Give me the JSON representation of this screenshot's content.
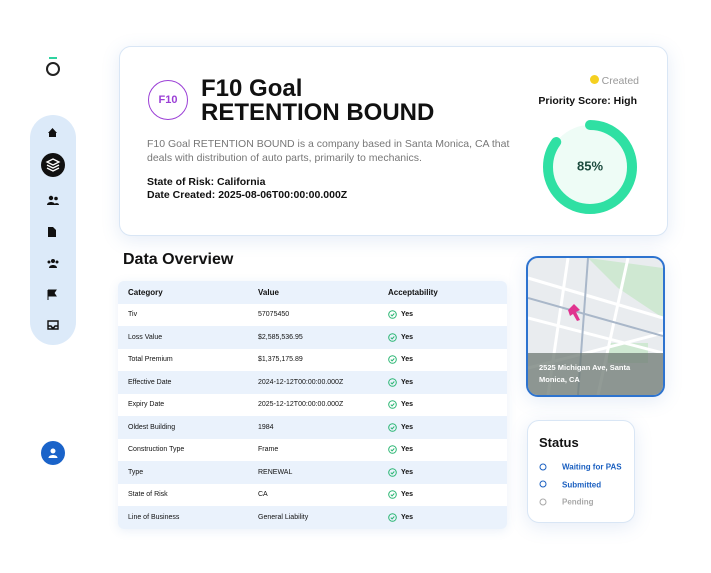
{
  "header": {
    "badge": "F10",
    "title_line1": "F10 Goal",
    "title_line2": "RETENTION BOUND",
    "description": "F10 Goal RETENTION BOUND is a company based in Santa Monica, CA that deals with distribution of auto parts, primarily to mechanics.",
    "state_of_risk": "State of Risk: California",
    "date_created": "Date Created: 2025-08-06T00:00:00.000Z",
    "status_badge": "Created",
    "priority": "Priority Score: High",
    "score": {
      "value": 85,
      "label": "85%"
    },
    "score_color": "#2fe0a3"
  },
  "data_overview": {
    "title": "Data Overview",
    "table": {
      "columns": [
        "Category",
        "Value",
        "Acceptability"
      ],
      "rows": [
        [
          "Tiv",
          "57075450",
          "Yes"
        ],
        [
          "Loss Value",
          "$2,585,536.95",
          "Yes"
        ],
        [
          "Total Premium",
          "$1,375,175.89",
          "Yes"
        ],
        [
          "Effective Date",
          "2024-12-12T00:00:00.000Z",
          "Yes"
        ],
        [
          "Expiry Date",
          "2025-12-12T00:00:00.000Z",
          "Yes"
        ],
        [
          "Oldest Building",
          "1984",
          "Yes"
        ],
        [
          "Construction Type",
          "Frame",
          "Yes"
        ],
        [
          "Type",
          "RENEWAL",
          "Yes"
        ],
        [
          "State of Risk",
          "CA",
          "Yes"
        ],
        [
          "Line of Business",
          "General Liability",
          "Yes"
        ]
      ]
    }
  },
  "map": {
    "address": "2525 Michigan Ave, Santa Monica, CA"
  },
  "status": {
    "title": "Status",
    "steps": [
      {
        "label": "Waiting for PAS",
        "color": "#1a5fc0"
      },
      {
        "label": "Submitted",
        "color": "#1a5fc0"
      },
      {
        "label": "Pending",
        "color": "#a8a8a8"
      }
    ]
  }
}
